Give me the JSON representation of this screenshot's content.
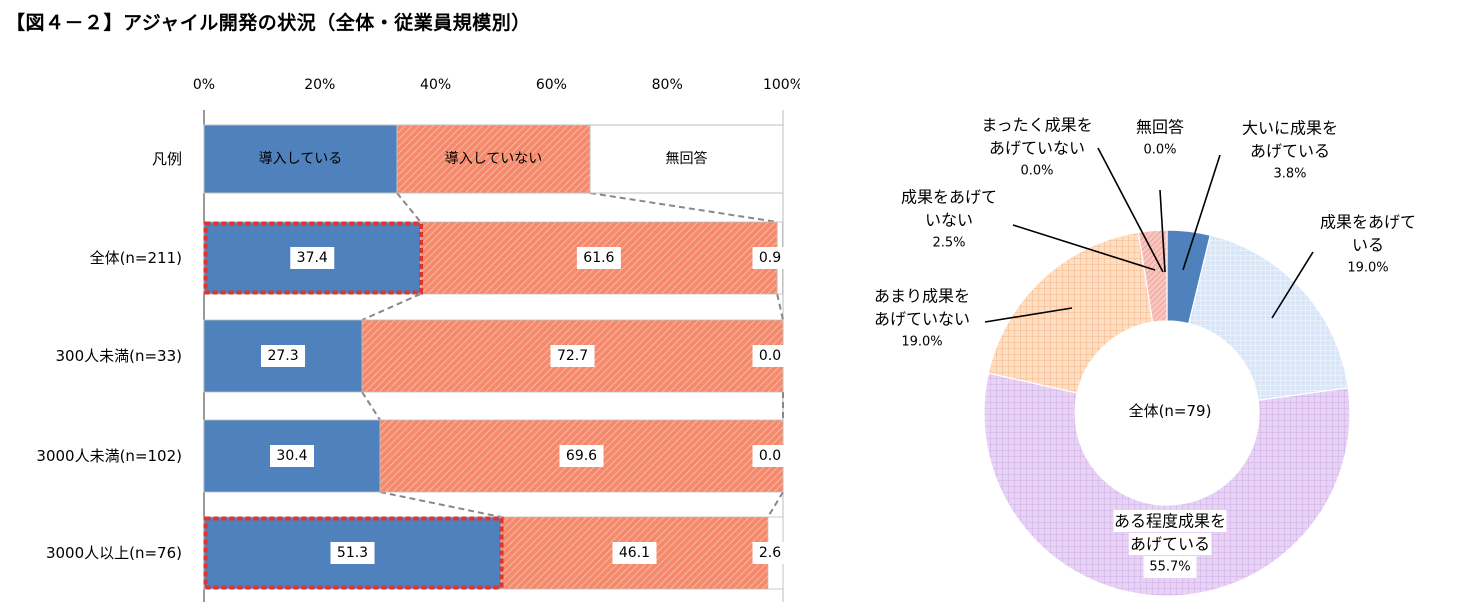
{
  "title": "【図４－２】アジャイル開発の状況（全体・従業員規模別）",
  "colors": {
    "introduced": "#4f81bd",
    "not_introduced": "#f4896b",
    "no_answer": "#ffffff",
    "highlight": "#e0332e",
    "connector": "#888888",
    "axis": "#333333"
  },
  "chart_data": [
    {
      "type": "bar",
      "orientation": "horizontal",
      "stacked": true,
      "percent_stacked": true,
      "x_ticks": [
        "0%",
        "20%",
        "40%",
        "60%",
        "80%",
        "100%"
      ],
      "xlim": [
        0,
        100
      ],
      "legend_row": {
        "label": "凡例",
        "items": [
          "導入している",
          "導入していない",
          "無回答"
        ]
      },
      "categories": [
        "全体(n=211)",
        "300人未満(n=33)",
        "3000人未満(n=102)",
        "3000人以上(n=76)"
      ],
      "series": [
        {
          "name": "導入している",
          "values": [
            37.4,
            27.3,
            30.4,
            51.3
          ],
          "labels": [
            "37.4",
            "27.3",
            "30.4",
            "51.3"
          ]
        },
        {
          "name": "導入していない",
          "values": [
            61.6,
            72.7,
            69.6,
            46.1
          ],
          "labels": [
            "61.6",
            "72.7",
            "69.6",
            "46.1"
          ]
        },
        {
          "name": "無回答",
          "values": [
            0.9,
            0.0,
            0.0,
            2.6
          ],
          "labels": [
            "0.9",
            "0.0",
            "0.0",
            "2.6"
          ]
        }
      ],
      "highlighted_categories": [
        "全体(n=211)",
        "3000人以上(n=76)"
      ],
      "connector_lines": true
    },
    {
      "type": "pie",
      "donut": true,
      "center_label": "全体(n=79)",
      "slices": [
        {
          "label_lines": [
            "大いに成果を",
            "あげている"
          ],
          "pct": "3.8%",
          "value": 3.8,
          "color": "#4f81bd"
        },
        {
          "label_lines": [
            "成果をあげて",
            "いる"
          ],
          "pct": "19.0%",
          "value": 19.0,
          "color": "#d6e4f7"
        },
        {
          "label_lines": [
            "ある程度成果を",
            "あげている"
          ],
          "pct": "55.7%",
          "value": 55.7,
          "color": "#e6d6f5"
        },
        {
          "label_lines": [
            "あまり成果を",
            "あげていない"
          ],
          "pct": "19.0%",
          "value": 19.0,
          "color": "#fbd6b4"
        },
        {
          "label_lines": [
            "成果をあげて",
            "いない"
          ],
          "pct": "2.5%",
          "value": 2.5,
          "color": "#f6b8b0"
        },
        {
          "label_lines": [
            "まったく成果を",
            "あげていない"
          ],
          "pct": "0.0%",
          "value": 0.0,
          "color": "#c0504d"
        },
        {
          "label_lines": [
            "無回答"
          ],
          "pct": "0.0%",
          "value": 0.0,
          "color": "#ffffff"
        }
      ]
    }
  ]
}
